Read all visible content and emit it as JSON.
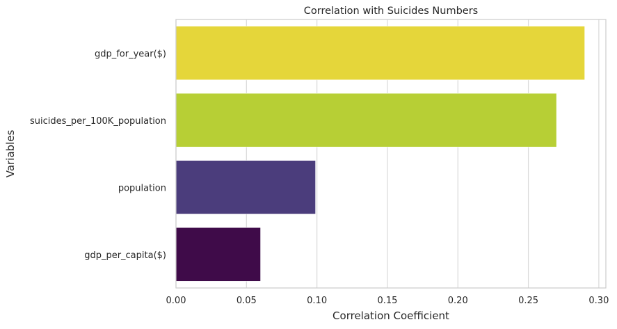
{
  "chart_data": {
    "type": "bar",
    "orientation": "horizontal",
    "title": "Correlation with Suicides Numbers",
    "xlabel": "Correlation Coefficient",
    "ylabel": "Variables",
    "categories": [
      "gdp_for_year($)",
      "suicides_per_100K_population",
      "population",
      "gdp_per_capita($)"
    ],
    "values": [
      0.29,
      0.27,
      0.099,
      0.06
    ],
    "colors": [
      "#e5d63a",
      "#b7cf35",
      "#4b3d7c",
      "#3f0b49"
    ],
    "xlim": [
      0,
      0.305
    ],
    "xticks": [
      0.0,
      0.05,
      0.1,
      0.15,
      0.2,
      0.25,
      0.3
    ],
    "xtick_labels": [
      "0.00",
      "0.05",
      "0.10",
      "0.15",
      "0.20",
      "0.25",
      "0.30"
    ],
    "grid": "vertical",
    "legend": "none"
  }
}
